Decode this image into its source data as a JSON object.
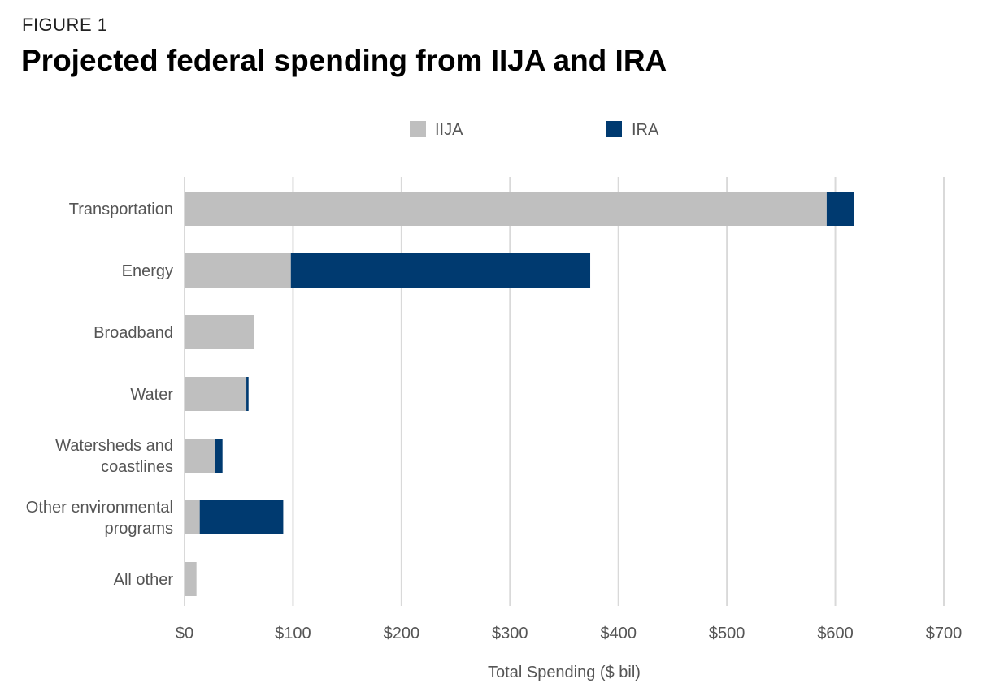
{
  "header": {
    "figure_label": "FIGURE 1",
    "title": "Projected federal spending from IIJA and IRA"
  },
  "chart_data": {
    "type": "bar",
    "orientation": "horizontal",
    "stacked": true,
    "title": "Projected federal spending from IIJA and IRA",
    "xlabel": "Total Spending ($ bil)",
    "ylabel": "",
    "xlim": [
      0,
      700
    ],
    "x_ticks": [
      0,
      100,
      200,
      300,
      400,
      500,
      600,
      700
    ],
    "x_tick_labels": [
      "$0",
      "$100",
      "$200",
      "$300",
      "$400",
      "$500",
      "$600",
      "$700"
    ],
    "grid": "vertical",
    "legend_position": "top-center",
    "categories": [
      [
        "Transportation"
      ],
      [
        "Energy"
      ],
      [
        "Broadband"
      ],
      [
        "Water"
      ],
      [
        "Watersheds and",
        "coastlines"
      ],
      [
        "Other environmental",
        "programs"
      ],
      [
        "All other"
      ]
    ],
    "series": [
      {
        "name": "IIJA",
        "color": "#bfbfbf",
        "values": [
          592,
          98,
          64,
          57,
          28,
          14,
          11
        ]
      },
      {
        "name": "IRA",
        "color": "#003a70",
        "values": [
          25,
          276,
          0,
          2,
          7,
          77,
          0
        ]
      }
    ]
  }
}
